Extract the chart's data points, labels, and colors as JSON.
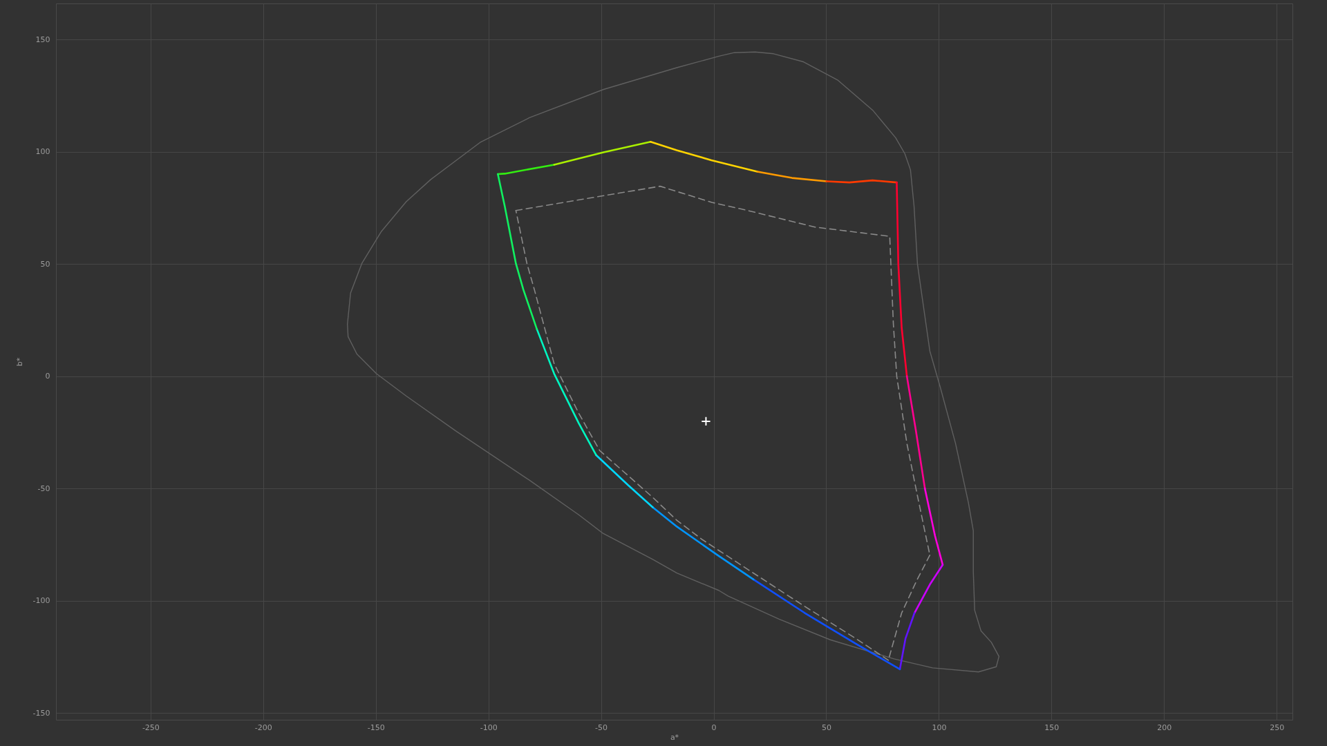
{
  "chart_data": {
    "type": "line",
    "xlabel": "a*",
    "ylabel": "b*",
    "xlim": [
      -292,
      257
    ],
    "ylim": [
      -153,
      166
    ],
    "xticks": [
      -250,
      -200,
      -150,
      -100,
      -50,
      0,
      50,
      100,
      150,
      200,
      250
    ],
    "yticks": [
      -150,
      -100,
      -50,
      0,
      50,
      100,
      150
    ],
    "grid": true,
    "series": [
      {
        "color": "#606060",
        "x": [
          -162.6,
          -161.2,
          -156.2,
          -147.5,
          -136.5,
          -125.6,
          -103.7,
          -81.8,
          -48.9,
          -16.4,
          2.3,
          9.2,
          18.4,
          26.6,
          39.9,
          55.2,
          70.6,
          80.8,
          84.9,
          87.4,
          89.0,
          90.5,
          92.1,
          96.0,
          100.6,
          107.4,
          113.1,
          115.3,
          115.3,
          115.9,
          118.7,
          123.3,
          126.7,
          null,
          -162.6,
          -162.3,
          -158.4,
          -149.7,
          -136.5,
          -114.6,
          -81.8,
          -59.9,
          -49.1,
          -27.0,
          -16.3,
          2.3,
          6.4,
          29.1,
          51.8,
          80.1,
          97.2,
          117.6,
          125.5,
          126.7
        ],
        "values": [
          23.2,
          37.0,
          50.2,
          64.5,
          77.7,
          87.6,
          104.1,
          115.1,
          127.7,
          137.4,
          142.5,
          144.1,
          144.4,
          143.6,
          140.0,
          131.8,
          118.5,
          106.2,
          99.1,
          91.9,
          75.6,
          50.0,
          38.6,
          11.2,
          -4.8,
          -29.9,
          -56.2,
          -68.8,
          -87.1,
          -104.2,
          -113.4,
          -118.5,
          -124.8,
          null,
          23.2,
          17.6,
          9.9,
          1.1,
          -8.8,
          -24.3,
          -46.3,
          -61.7,
          -70.0,
          -81.6,
          -87.7,
          -95.4,
          -97.9,
          -108.2,
          -117.4,
          -125.9,
          -129.9,
          -131.7,
          -129.4,
          -124.8
        ]
      },
      {
        "color": "#8a8a8a",
        "line_style": "dashed",
        "x": [
          -87.8,
          -23.8,
          -0.8,
          14.3,
          45.0,
          78.2,
          78.7,
          79.8,
          81.3,
          85.8,
          90.4,
          96.0
        ],
        "values": [
          73.8,
          84.6,
          77.4,
          74.0,
          66.4,
          62.3,
          50.0,
          23.4,
          0,
          -29.9,
          -52.8,
          -79.7
        ]
      },
      {
        "color": "#8a8a8a",
        "line_style": "dashed",
        "x": [
          96.0,
          90.4,
          83.5,
          79.0,
          77.6
        ],
        "values": [
          -79.7,
          -90.5,
          -105.4,
          -121.4,
          -126.5
        ]
      },
      {
        "color": "#8a8a8a",
        "line_style": "dashed",
        "x": [
          77.6,
          63.1,
          40.4,
          17.7,
          -5.0,
          -16.3,
          -27.0,
          -50.6,
          -59.9,
          -70.8,
          -79.6,
          -82.9,
          -87.8
        ],
        "values": [
          -126.5,
          -116.8,
          -102.5,
          -87.7,
          -72.8,
          -64.2,
          -54.0,
          -33.1,
          -16.5,
          5.5,
          38.6,
          50.2,
          73.8
        ]
      },
      {
        "color": "#33ee11",
        "x": [
          -95.8,
          -92.7,
          -70.8
        ],
        "values": [
          90.0,
          90.2,
          94.2
        ]
      },
      {
        "color": "#aaf000",
        "x": [
          -70.8,
          -48.9,
          -28.0
        ],
        "values": [
          94.2,
          99.7,
          104.4
        ]
      },
      {
        "color": "#ffd400",
        "x": [
          -28.0,
          -16.4,
          -1.0,
          19.4
        ],
        "values": [
          104.4,
          100.6,
          96.2,
          91.1
        ]
      },
      {
        "color": "#ff9a00",
        "x": [
          19.4,
          34.8,
          50.1
        ],
        "values": [
          91.1,
          88.3,
          86.8
        ]
      },
      {
        "color": "#ff3a00",
        "x": [
          50.1,
          60.3,
          70.6,
          81.3
        ],
        "values": [
          86.8,
          86.3,
          87.2,
          86.3
        ]
      },
      {
        "color": "#ff0030",
        "x": [
          81.3,
          82.0,
          83.5,
          85.8
        ],
        "values": [
          86.3,
          50.0,
          21.5,
          0
        ]
      },
      {
        "color": "#ff0090",
        "x": [
          85.8,
          89.8,
          93.8
        ],
        "values": [
          0,
          -24.2,
          -50.0
        ]
      },
      {
        "color": "#ff00dd",
        "x": [
          93.8,
          98.3,
          101.7
        ],
        "values": [
          -50.0,
          -71.1,
          -84.0
        ]
      },
      {
        "color": "#cc00ff",
        "x": [
          101.7,
          96.0,
          89.2
        ],
        "values": [
          -84.0,
          -92.8,
          -105.4
        ]
      },
      {
        "color": "#6015ff",
        "x": [
          89.2,
          85.2,
          82.7
        ],
        "values": [
          -105.4,
          -116.8,
          -130.5
        ]
      },
      {
        "color": "#1050ff",
        "x": [
          82.7,
          63.1,
          40.4,
          17.7
        ],
        "values": [
          -130.5,
          -119.1,
          -105.4,
          -90.5
        ]
      },
      {
        "color": "#0095ff",
        "x": [
          17.7,
          1.5,
          -16.3,
          -27.0
        ],
        "values": [
          -90.5,
          -79.5,
          -67.0,
          -58.4
        ]
      },
      {
        "color": "#00d8ff",
        "x": [
          -27.0,
          -38.0,
          -52.2
        ],
        "values": [
          -58.4,
          -48.5,
          -35.1
        ]
      },
      {
        "color": "#00f5c0",
        "x": [
          -52.2,
          -59.9,
          -70.8,
          -78.5
        ],
        "values": [
          -35.1,
          -20.9,
          1.1,
          21.0
        ]
      },
      {
        "color": "#10f060",
        "x": [
          -78.5,
          -84.5,
          -87.8,
          -92.7,
          -95.8
        ],
        "values": [
          21.0,
          38.6,
          50.2,
          75.5,
          90.0
        ]
      },
      {
        "type": "scatter",
        "marker": "cross",
        "color": "#ffffff",
        "x": [
          -3.4
        ],
        "values": [
          -20.1
        ]
      }
    ]
  }
}
